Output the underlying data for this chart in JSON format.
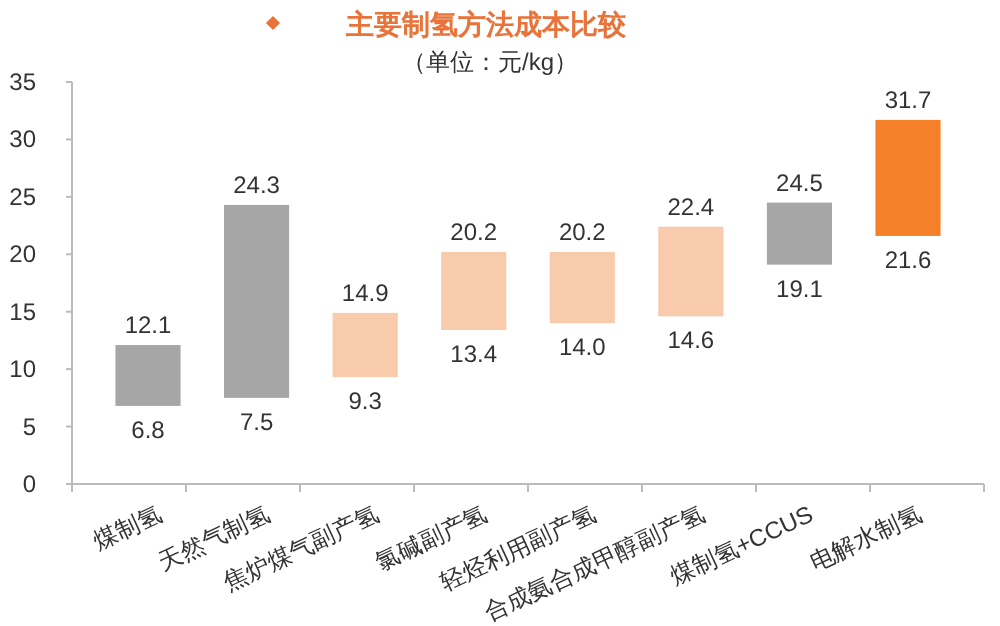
{
  "chart_data": {
    "type": "bar",
    "title": "主要制氢方法成本比较",
    "subtitle": "（单位：元/kg）",
    "categories": [
      "煤制氢",
      "天然气制氢",
      "焦炉煤气副产氢",
      "氯碱副产氢",
      "轻烃利用副产氢",
      "合成氨合成甲醇副产氢",
      "煤制氢+CCUS",
      "电解水制氢"
    ],
    "base": [
      6.8,
      7.5,
      9.3,
      13.4,
      14.0,
      14.6,
      19.1,
      21.6
    ],
    "values": [
      5.3,
      16.8,
      5.6,
      6.8,
      6.2,
      7.8,
      5.4,
      10.1
    ],
    "value_labels": [
      "12.1",
      "24.3",
      "14.9",
      "20.2",
      "20.2",
      "22.4",
      "24.5",
      "31.7"
    ],
    "colors": [
      "#a6a6a6",
      "#a6a6a6",
      "#f8cbad",
      "#f8cbad",
      "#f8cbad",
      "#f8cbad",
      "#a6a6a6",
      "#f4802a"
    ],
    "annotations": [
      {
        "text": "6.8",
        "x": "煤制氢",
        "y": 6.8
      },
      {
        "text": "7.5",
        "x": "天然气制氢",
        "y": 7.5
      },
      {
        "text": "9.3",
        "x": "焦炉煤气副产氢",
        "y": 9.3
      },
      {
        "text": "13.4",
        "x": "氯碱副产氢",
        "y": 13.4
      },
      {
        "text": "14.0",
        "x": "轻烃利用副产氢",
        "y": 14.0
      },
      {
        "text": "14.6",
        "x": "合成氨合成甲醇副产氢",
        "y": 14.6
      },
      {
        "text": "19.1",
        "x": "煤制氢+CCUS",
        "y": 19.1
      },
      {
        "text": "21.6",
        "x": "电解水制氢",
        "y": 21.6
      }
    ],
    "ylim": [
      0,
      35
    ],
    "yticks": [
      0,
      5,
      10,
      15,
      20,
      25,
      30,
      35
    ],
    "grid": false
  }
}
